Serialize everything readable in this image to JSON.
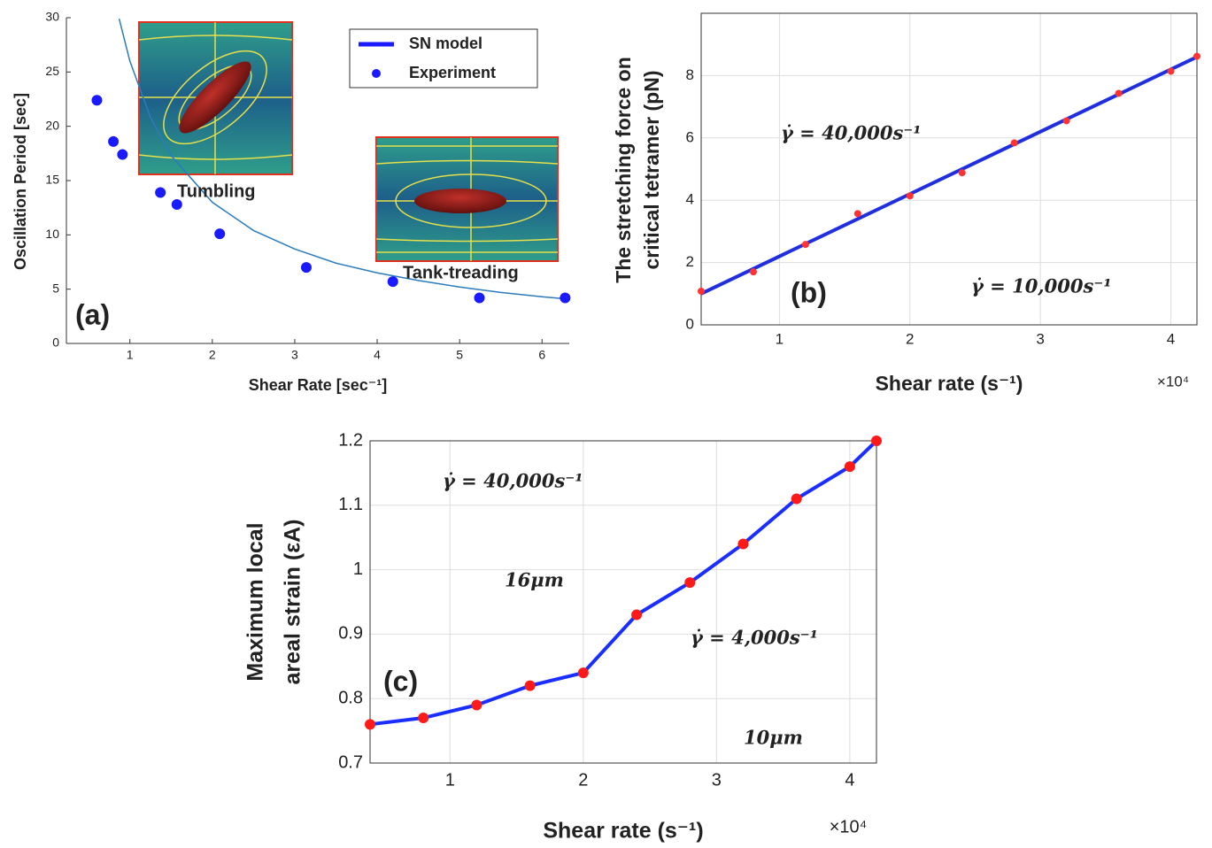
{
  "chart_data": [
    {
      "type": "scatter",
      "x_label": "Shear Rate [sec⁻¹]",
      "y_label": [
        "Oscillation Period [sec]"
      ],
      "xlim": [
        0.23,
        6.33
      ],
      "ylim": [
        0,
        30
      ],
      "xticks": [
        1,
        2,
        3,
        4,
        5,
        6
      ],
      "yticks": [
        0,
        5,
        10,
        15,
        20,
        25,
        30
      ],
      "grid": false,
      "box": false,
      "legend": "upper right",
      "series": [
        {
          "name": "SN model",
          "style": "line",
          "color": "#2b7bbd",
          "x": [
            0.87,
            1,
            1.25,
            1.5,
            2,
            2.5,
            3,
            3.5,
            4,
            4.5,
            5,
            5.5,
            6,
            6.3
          ],
          "values": [
            29.9,
            26,
            20.8,
            17.3,
            13,
            10.4,
            8.7,
            7.4,
            6.5,
            5.8,
            5.2,
            4.7,
            4.3,
            4.1
          ]
        },
        {
          "name": "Experiment",
          "style": "markers",
          "color": "#1a1aff",
          "x": [
            0.6,
            0.8,
            0.91,
            1.37,
            1.57,
            2.09,
            3.14,
            4.19,
            5.24,
            6.28
          ],
          "values": [
            22.4,
            18.6,
            17.4,
            13.9,
            12.8,
            10.1,
            7.0,
            5.7,
            4.2,
            4.2
          ]
        }
      ],
      "annotations": [
        "Tumbling",
        "Tank-treading",
        "(a)"
      ]
    },
    {
      "type": "scatter",
      "x_label": "Shear rate (s⁻¹)",
      "x_multiplier": "×10⁴",
      "y_label": [
        "The stretching force on",
        "critical tetramer (pN)"
      ],
      "xlim": [
        0.4,
        4.2
      ],
      "ylim": [
        0,
        10
      ],
      "xticks": [
        1,
        2,
        3,
        4
      ],
      "yticks": [
        0,
        2,
        4,
        6,
        8
      ],
      "grid": true,
      "box": true,
      "series": [
        {
          "style": "line",
          "color": "#1f2fe0",
          "x": [
            0.4,
            4.2
          ],
          "values": [
            1.0,
            8.6
          ]
        },
        {
          "style": "markers",
          "color": "#ff3333",
          "x": [
            0.4,
            0.8,
            1.2,
            1.6,
            2.0,
            2.4,
            2.8,
            3.2,
            3.6,
            4.0,
            4.2
          ],
          "values": [
            1.08,
            1.7,
            2.58,
            3.57,
            4.14,
            4.88,
            5.84,
            6.55,
            7.43,
            8.14,
            8.62
          ]
        }
      ],
      "annotations": [
        "(b)",
        "γ̇ = 40,000s⁻¹",
        "γ̇ = 10,000s⁻¹"
      ]
    },
    {
      "type": "line",
      "x_label": "Shear rate (s⁻¹)",
      "x_multiplier": "×10⁴",
      "y_label": [
        "Maximum local",
        "areal strain (εA)"
      ],
      "xlim": [
        0.4,
        4.2
      ],
      "ylim": [
        0.7,
        1.2
      ],
      "xticks": [
        1,
        2,
        3,
        4
      ],
      "yticks": [
        0.7,
        0.8,
        0.9,
        1,
        1.1,
        1.2
      ],
      "grid": true,
      "box": true,
      "series": [
        {
          "style": "line-markers",
          "color": "#1a2fff",
          "marker_color": "#ff1a1a",
          "x": [
            0.4,
            0.8,
            1.2,
            1.6,
            2.0,
            2.4,
            2.8,
            3.2,
            3.6,
            4.0,
            4.2
          ],
          "values": [
            0.76,
            0.77,
            0.79,
            0.82,
            0.84,
            0.93,
            0.98,
            1.04,
            1.11,
            1.16,
            1.2
          ]
        }
      ],
      "annotations": [
        "(c)",
        "γ̇ = 40,000s⁻¹",
        "16μm",
        "γ̇ = 4,000s⁻¹",
        "10μm"
      ]
    }
  ]
}
